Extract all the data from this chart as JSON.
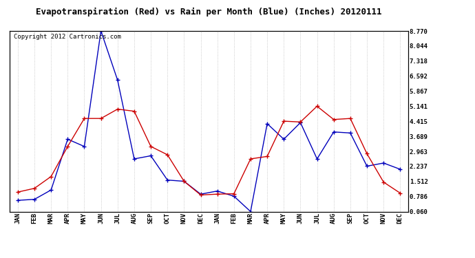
{
  "title": "Evapotranspiration (Red) vs Rain per Month (Blue) (Inches) 20120111",
  "copyright": "Copyright 2012 Cartronics.com",
  "months": [
    "JAN",
    "FEB",
    "MAR",
    "APR",
    "MAY",
    "JUN",
    "JUL",
    "AUG",
    "SEP",
    "OCT",
    "NOV",
    "DEC",
    "JAN",
    "FEB",
    "MAR",
    "APR",
    "MAY",
    "JUN",
    "JUL",
    "AUG",
    "SEP",
    "OCT",
    "NOV",
    "DEC"
  ],
  "rain_blue": [
    0.6,
    0.65,
    1.1,
    3.55,
    3.2,
    8.77,
    6.4,
    2.6,
    2.75,
    1.58,
    1.52,
    0.9,
    1.05,
    0.8,
    0.06,
    4.3,
    3.55,
    4.35,
    2.6,
    3.9,
    3.85,
    2.25,
    2.4,
    2.1
  ],
  "et_red": [
    1.0,
    1.18,
    1.75,
    3.2,
    4.55,
    4.55,
    5.0,
    4.9,
    3.2,
    2.8,
    1.52,
    0.86,
    0.9,
    0.92,
    2.6,
    2.72,
    4.42,
    4.38,
    5.14,
    4.5,
    4.55,
    2.85,
    1.48,
    0.95
  ],
  "ylim_min": 0.06,
  "ylim_max": 8.77,
  "yticks": [
    0.06,
    0.786,
    1.512,
    2.237,
    2.963,
    3.689,
    4.415,
    5.141,
    5.867,
    6.592,
    7.318,
    8.044,
    8.77
  ],
  "blue_color": "#0000bb",
  "red_color": "#cc0000",
  "grid_color": "#bbbbbb",
  "bg_color": "#ffffff",
  "title_fontsize": 9,
  "copyright_fontsize": 6.5
}
